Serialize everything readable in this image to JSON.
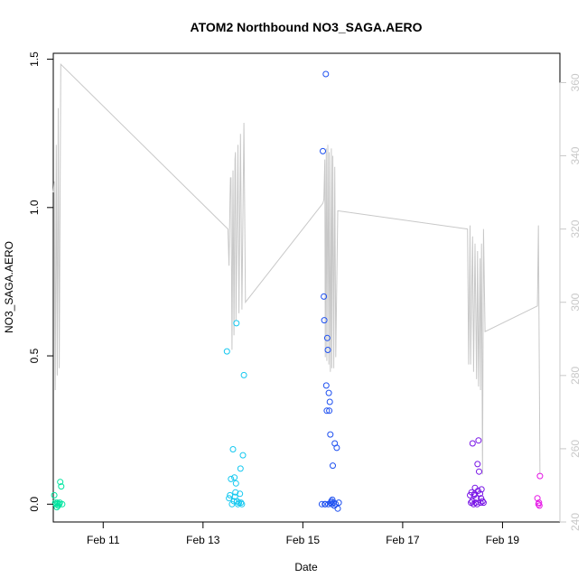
{
  "chart_data": {
    "type": "scatter",
    "title": "ATOM2 Northbound NO3_SAGA.AERO",
    "xlabel": "Date",
    "ylabel": "NO3_SAGA.AERO",
    "xlim": [
      10.0,
      20.15
    ],
    "ylim": [
      -0.06,
      1.52
    ],
    "y_ticks": [
      {
        "value": 0.0,
        "label": "0.0"
      },
      {
        "value": 0.5,
        "label": "0.5"
      },
      {
        "value": 1.0,
        "label": "1.0"
      },
      {
        "value": 1.5,
        "label": "1.5"
      }
    ],
    "x_ticks": [
      {
        "value": 11,
        "label": "Feb 11"
      },
      {
        "value": 13,
        "label": "Feb 13"
      },
      {
        "value": 15,
        "label": "Feb 15"
      },
      {
        "value": 17,
        "label": "Feb 17"
      },
      {
        "value": 19,
        "label": "Feb 19"
      }
    ],
    "y2_lim": [
      240,
      368
    ],
    "y2_ticks": [
      {
        "value": 240,
        "label": "240"
      },
      {
        "value": 260,
        "label": "260"
      },
      {
        "value": 280,
        "label": "280"
      },
      {
        "value": 300,
        "label": "300"
      },
      {
        "value": 320,
        "label": "320"
      },
      {
        "value": 340,
        "label": "340"
      },
      {
        "value": 360,
        "label": "360"
      }
    ],
    "grid": false,
    "colors": {
      "line": "#c8c8c8",
      "flight1": "#00e5a0",
      "flight2": "#14c8f0",
      "flight3": "#1e50f0",
      "flight4": "#7814e6",
      "flight5": "#e614e6"
    },
    "series": [
      {
        "color_key": "flight1",
        "points": [
          [
            10.02,
            0.03
          ],
          [
            10.05,
            0.0
          ],
          [
            10.07,
            -0.01
          ],
          [
            10.08,
            0.005
          ],
          [
            10.1,
            -0.005
          ],
          [
            10.12,
            0.0
          ],
          [
            10.13,
            0.005
          ],
          [
            10.14,
            0.075
          ],
          [
            10.16,
            0.06
          ],
          [
            10.18,
            0.0
          ],
          [
            10.04,
            0.005
          ],
          [
            10.09,
            0.0
          ]
        ]
      },
      {
        "color_key": "flight2",
        "points": [
          [
            13.48,
            0.515
          ],
          [
            13.52,
            0.02
          ],
          [
            13.54,
            0.03
          ],
          [
            13.56,
            0.085
          ],
          [
            13.58,
            0.0
          ],
          [
            13.6,
            0.185
          ],
          [
            13.62,
            0.01
          ],
          [
            13.63,
            0.09
          ],
          [
            13.65,
            0.04
          ],
          [
            13.66,
            0.07
          ],
          [
            13.67,
            0.61
          ],
          [
            13.68,
            0.01
          ],
          [
            13.7,
            0.0
          ],
          [
            13.72,
            0.005
          ],
          [
            13.74,
            0.035
          ],
          [
            13.75,
            0.12
          ],
          [
            13.78,
            0.0
          ],
          [
            13.8,
            0.165
          ],
          [
            13.82,
            0.435
          ],
          [
            13.76,
            0.005
          ],
          [
            13.64,
            0.025
          ]
        ]
      },
      {
        "color_key": "flight3",
        "points": [
          [
            15.38,
            0.0
          ],
          [
            15.4,
            1.19
          ],
          [
            15.42,
            0.7
          ],
          [
            15.43,
            0.62
          ],
          [
            15.44,
            0.0
          ],
          [
            15.46,
            1.45
          ],
          [
            15.47,
            0.4
          ],
          [
            15.48,
            0.315
          ],
          [
            15.49,
            0.56
          ],
          [
            15.5,
            0.52
          ],
          [
            15.51,
            0.0
          ],
          [
            15.52,
            0.375
          ],
          [
            15.53,
            0.315
          ],
          [
            15.54,
            0.345
          ],
          [
            15.55,
            0.235
          ],
          [
            15.56,
            0.005
          ],
          [
            15.57,
            0.01
          ],
          [
            15.58,
            0.0
          ],
          [
            15.6,
            0.13
          ],
          [
            15.62,
            0.005
          ],
          [
            15.64,
            0.205
          ],
          [
            15.66,
            0.0
          ],
          [
            15.68,
            0.19
          ],
          [
            15.7,
            -0.015
          ],
          [
            15.72,
            0.005
          ],
          [
            15.45,
            0.0
          ],
          [
            15.59,
            0.015
          ],
          [
            15.63,
            -0.005
          ]
        ]
      },
      {
        "color_key": "flight4",
        "points": [
          [
            18.35,
            0.03
          ],
          [
            18.37,
            0.005
          ],
          [
            18.38,
            0.04
          ],
          [
            18.4,
            0.205
          ],
          [
            18.42,
            0.0
          ],
          [
            18.43,
            0.03
          ],
          [
            18.45,
            0.055
          ],
          [
            18.46,
            0.005
          ],
          [
            18.48,
            0.02
          ],
          [
            18.5,
            0.135
          ],
          [
            18.52,
            0.215
          ],
          [
            18.53,
            0.11
          ],
          [
            18.55,
            0.035
          ],
          [
            18.56,
            0.005
          ],
          [
            18.58,
            0.05
          ],
          [
            18.6,
            0.01
          ],
          [
            18.62,
            0.005
          ],
          [
            18.39,
            0.01
          ],
          [
            18.44,
            0.035
          ],
          [
            18.49,
            0.0
          ],
          [
            18.51,
            0.045
          ],
          [
            18.57,
            0.02
          ]
        ]
      },
      {
        "color_key": "flight5",
        "points": [
          [
            19.7,
            0.02
          ],
          [
            19.72,
            0.0
          ],
          [
            19.73,
            0.005
          ],
          [
            19.75,
            0.095
          ],
          [
            19.74,
            -0.005
          ]
        ]
      }
    ],
    "secondary_line": [
      [
        10.0,
        330
      ],
      [
        10.02,
        333
      ],
      [
        10.03,
        300
      ],
      [
        10.04,
        276
      ],
      [
        10.06,
        343
      ],
      [
        10.08,
        280
      ],
      [
        10.1,
        353
      ],
      [
        10.12,
        282
      ],
      [
        10.15,
        365
      ],
      [
        13.5,
        320
      ],
      [
        13.52,
        310
      ],
      [
        13.54,
        328
      ],
      [
        13.55,
        334
      ],
      [
        13.56,
        334
      ],
      [
        13.58,
        287
      ],
      [
        13.6,
        336
      ],
      [
        13.62,
        291
      ],
      [
        13.64,
        339
      ],
      [
        13.65,
        341
      ],
      [
        13.66,
        295
      ],
      [
        13.7,
        343
      ],
      [
        13.72,
        297
      ],
      [
        13.75,
        346
      ],
      [
        13.78,
        298
      ],
      [
        13.82,
        349
      ],
      [
        13.85,
        300
      ],
      [
        15.4,
        327
      ],
      [
        15.42,
        328
      ],
      [
        15.44,
        339
      ],
      [
        15.45,
        285
      ],
      [
        15.47,
        342
      ],
      [
        15.48,
        284
      ],
      [
        15.5,
        343
      ],
      [
        15.52,
        283
      ],
      [
        15.53,
        341
      ],
      [
        15.55,
        281
      ],
      [
        15.57,
        342
      ],
      [
        15.58,
        282
      ],
      [
        15.6,
        340
      ],
      [
        15.62,
        282
      ],
      [
        15.64,
        337
      ],
      [
        15.66,
        285
      ],
      [
        15.7,
        325
      ],
      [
        18.3,
        320
      ],
      [
        18.32,
        283
      ],
      [
        18.35,
        321
      ],
      [
        18.36,
        283
      ],
      [
        18.4,
        318
      ],
      [
        18.42,
        281
      ],
      [
        18.45,
        316
      ],
      [
        18.48,
        279
      ],
      [
        18.5,
        314
      ],
      [
        18.52,
        277
      ],
      [
        18.55,
        312
      ],
      [
        18.56,
        276
      ],
      [
        18.58,
        316
      ],
      [
        18.6,
        253
      ],
      [
        18.62,
        320
      ],
      [
        18.65,
        292
      ],
      [
        19.7,
        299
      ],
      [
        19.72,
        321
      ],
      [
        19.75,
        253
      ]
    ]
  }
}
